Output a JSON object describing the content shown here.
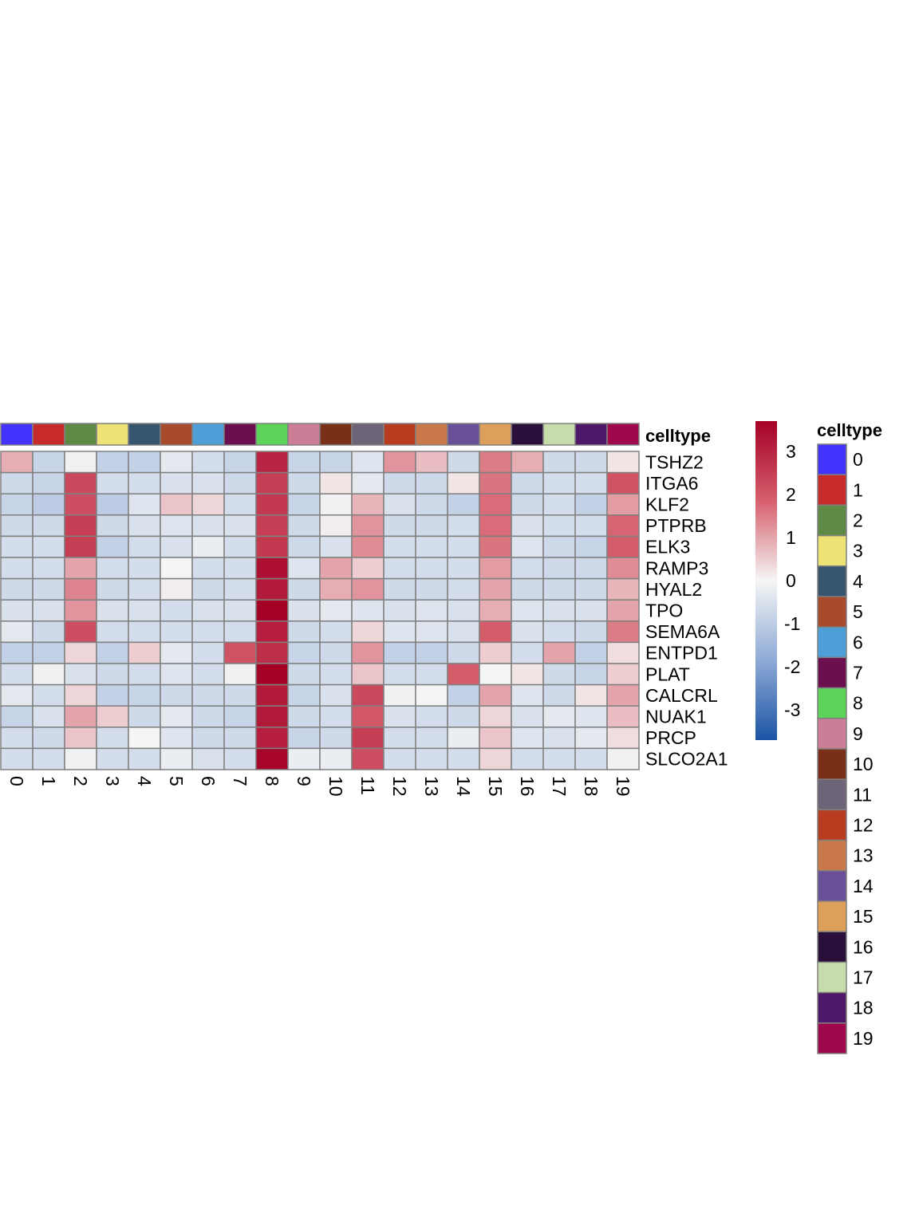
{
  "chart_data": {
    "type": "heatmap",
    "annotation_title": "celltype",
    "colorbar_ticks": [
      3,
      2,
      1,
      0,
      -1,
      -2,
      -3
    ],
    "colorbar_range": [
      -3.7,
      3.7
    ],
    "columns": [
      "0",
      "1",
      "2",
      "3",
      "4",
      "5",
      "6",
      "7",
      "8",
      "9",
      "10",
      "11",
      "12",
      "13",
      "14",
      "15",
      "16",
      "17",
      "18",
      "19"
    ],
    "rows": [
      "TSHZ2",
      "ITGA6",
      "KLF2",
      "PTPRB",
      "ELK3",
      "RAMP3",
      "HYAL2",
      "TPO",
      "SEMA6A",
      "ENTPD1",
      "PLAT",
      "CALCRL",
      "NUAK1",
      "PRCP",
      "SLCO2A1"
    ],
    "values": [
      [
        0.9,
        -0.8,
        -0.1,
        -0.9,
        -0.9,
        -0.3,
        -0.6,
        -0.8,
        3.0,
        -0.8,
        -0.8,
        -0.4,
        1.2,
        0.7,
        -0.7,
        1.5,
        0.9,
        -0.7,
        -0.7,
        0.2
      ],
      [
        -0.7,
        -0.8,
        2.3,
        -0.6,
        -0.6,
        -0.5,
        -0.5,
        -0.7,
        2.5,
        -0.7,
        0.2,
        -0.3,
        -0.7,
        -0.7,
        0.2,
        1.6,
        -0.7,
        -0.6,
        -0.6,
        2.1
      ],
      [
        -0.8,
        -1.0,
        2.2,
        -1.0,
        -0.4,
        0.6,
        0.4,
        -0.6,
        2.6,
        -0.8,
        -0.1,
        0.8,
        -0.5,
        -0.7,
        -0.9,
        1.7,
        -0.7,
        -0.6,
        -0.9,
        1.1
      ],
      [
        -0.7,
        -0.7,
        2.5,
        -0.7,
        -0.5,
        -0.4,
        -0.5,
        -0.5,
        2.5,
        -0.7,
        0.1,
        1.2,
        -0.7,
        -0.7,
        -0.6,
        1.7,
        -0.5,
        -0.6,
        -0.6,
        1.8
      ],
      [
        -0.6,
        -0.6,
        2.5,
        -0.9,
        -0.6,
        -0.5,
        -0.2,
        -0.6,
        2.6,
        -0.7,
        -0.5,
        1.3,
        -0.6,
        -0.6,
        -0.6,
        1.6,
        -0.4,
        -0.7,
        -0.8,
        1.9
      ],
      [
        -0.6,
        -0.6,
        1.0,
        -0.6,
        -0.6,
        0.0,
        -0.6,
        -0.6,
        3.4,
        -0.4,
        1.0,
        0.5,
        -0.6,
        -0.6,
        -0.6,
        1.1,
        -0.6,
        -0.7,
        -0.7,
        1.3
      ],
      [
        -0.7,
        -0.7,
        1.4,
        -0.7,
        -0.6,
        0.1,
        -0.7,
        -0.6,
        3.2,
        -0.7,
        0.9,
        1.2,
        -0.7,
        -0.7,
        -0.6,
        1.0,
        -0.7,
        -0.7,
        -0.7,
        0.8
      ],
      [
        -0.5,
        -0.5,
        1.2,
        -0.5,
        -0.5,
        -0.6,
        -0.5,
        -0.5,
        3.7,
        -0.5,
        -0.3,
        -0.4,
        -0.5,
        -0.4,
        -0.5,
        0.9,
        -0.4,
        -0.5,
        -0.5,
        1.0
      ],
      [
        -0.3,
        -0.7,
        2.2,
        -0.6,
        -0.6,
        -0.6,
        -0.6,
        -0.6,
        3.1,
        -0.7,
        -0.6,
        0.4,
        -0.4,
        -0.4,
        -0.5,
        1.9,
        -0.5,
        -0.6,
        -0.7,
        1.5
      ],
      [
        -0.9,
        -0.9,
        0.4,
        -0.9,
        0.5,
        -0.3,
        -0.6,
        2.1,
        2.8,
        -0.8,
        -0.7,
        1.2,
        -0.9,
        -0.9,
        -0.7,
        0.5,
        -0.6,
        1.0,
        -0.9,
        0.3
      ],
      [
        -0.6,
        -0.1,
        -0.5,
        -0.7,
        -0.6,
        -0.4,
        -0.6,
        -0.1,
        3.7,
        -0.7,
        -0.6,
        0.6,
        -0.6,
        -0.6,
        1.9,
        0.0,
        0.2,
        -0.7,
        -0.8,
        0.5
      ],
      [
        -0.3,
        -0.6,
        0.4,
        -0.9,
        -0.8,
        -0.7,
        -0.7,
        -0.7,
        3.2,
        -0.8,
        -0.5,
        2.3,
        -0.1,
        0.0,
        -0.9,
        1.0,
        -0.4,
        -0.7,
        0.2,
        1.0
      ],
      [
        -0.8,
        -0.5,
        1.0,
        0.5,
        -0.7,
        -0.3,
        -0.7,
        -0.8,
        3.2,
        -0.7,
        -0.6,
        2.0,
        -0.5,
        -0.6,
        -0.7,
        0.4,
        -0.5,
        -0.3,
        -0.4,
        0.7
      ],
      [
        -0.6,
        -0.7,
        0.6,
        -0.6,
        0.0,
        -0.4,
        -0.7,
        -0.7,
        3.1,
        -0.8,
        -0.7,
        2.5,
        -0.6,
        -0.6,
        -0.2,
        0.6,
        -0.4,
        -0.5,
        -0.3,
        0.3
      ],
      [
        -0.6,
        -0.6,
        -0.1,
        -0.6,
        -0.6,
        -0.2,
        -0.5,
        -0.6,
        3.6,
        -0.2,
        -0.2,
        2.2,
        -0.6,
        -0.6,
        -0.6,
        0.4,
        -0.6,
        -0.6,
        -0.6,
        -0.1
      ]
    ],
    "legend_entries": [
      "0",
      "1",
      "2",
      "3",
      "4",
      "5",
      "6",
      "7",
      "8",
      "9",
      "10",
      "11",
      "12",
      "13",
      "14",
      "15",
      "16",
      "17",
      "18",
      "19"
    ],
    "celltype_colors": [
      "#4433ff",
      "#c62a2a",
      "#5e8a46",
      "#ede274",
      "#365670",
      "#a84b2c",
      "#4e9fd8",
      "#6b0f4e",
      "#5cd45a",
      "#cc7e96",
      "#7a3018",
      "#6e6478",
      "#b83c20",
      "#c8784a",
      "#6a5098",
      "#dca05a",
      "#2a0f3a",
      "#c6dcaa",
      "#4e1868",
      "#a0084e"
    ]
  }
}
